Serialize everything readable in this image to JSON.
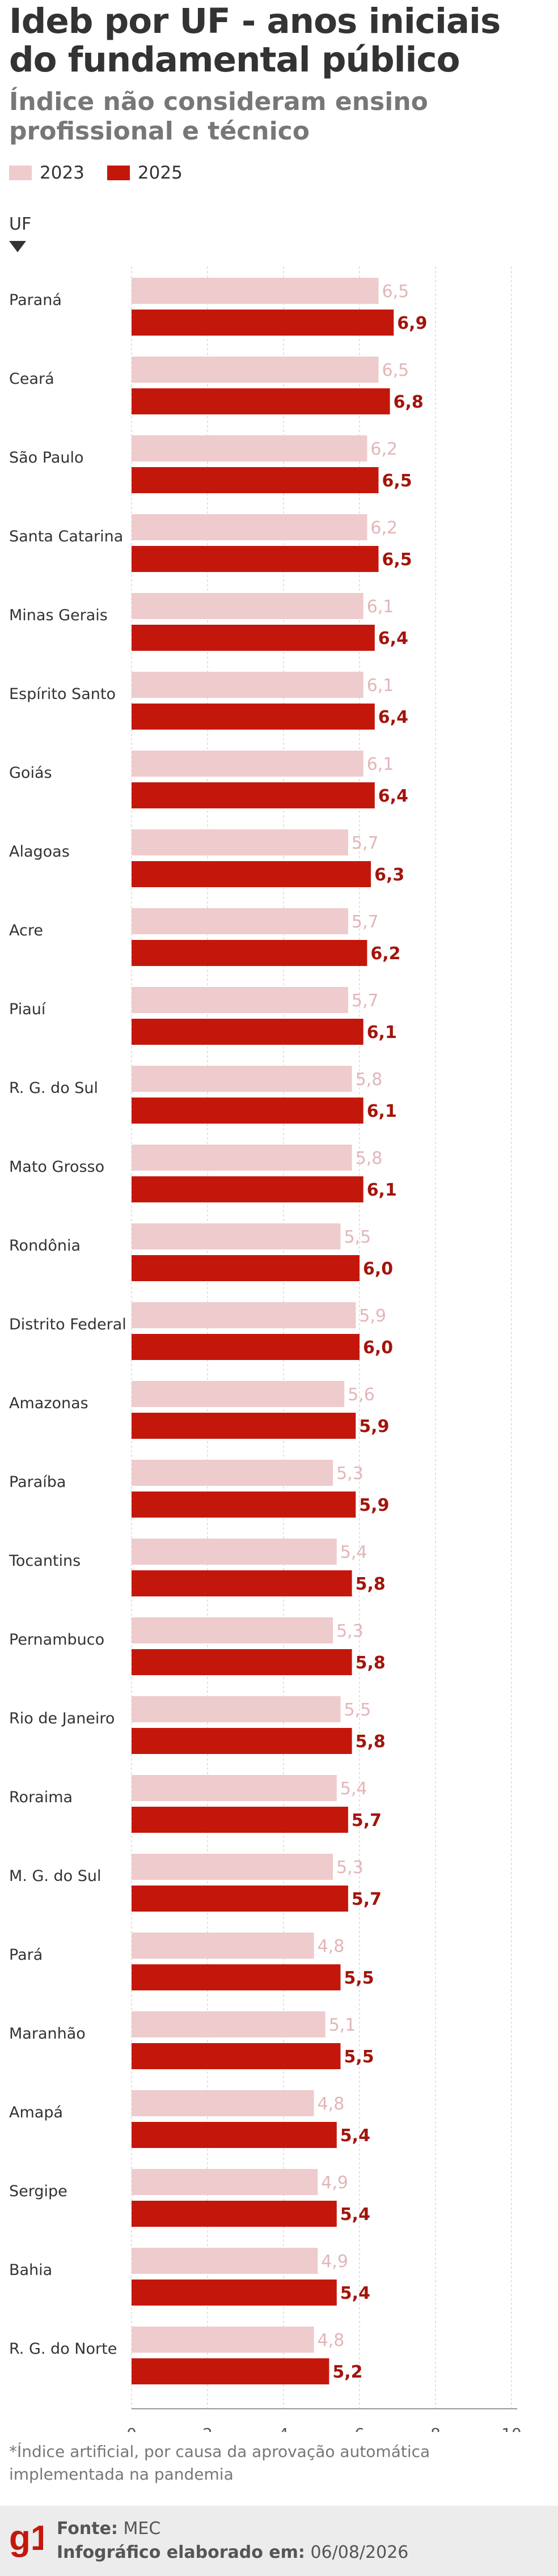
{
  "header": {
    "title": "Ideb por UF - anos iniciais do fundamental público",
    "subtitle": "Índice não consideram ensino profissional e técnico"
  },
  "legend": {
    "items": [
      {
        "label": "2023",
        "color": "#eecbcd"
      },
      {
        "label": "2025",
        "color": "#c4170c"
      }
    ]
  },
  "axis_head": "UF",
  "footnote": "*Índice artificial, por causa da aprovação automática implementada na pandemia",
  "footer": {
    "source_label": "Fonte:",
    "source_value": "MEC",
    "made_label": "Infográfico elaborado em:",
    "made_value": "06/08/2026",
    "logo_text": "g1"
  },
  "chart_data": {
    "type": "bar",
    "orientation": "horizontal",
    "title": "Ideb por UF - anos iniciais do fundamental público",
    "subtitle": "Índice não consideram ensino profissional e técnico",
    "xlim": [
      0,
      10
    ],
    "x_ticks": [
      "0",
      "2",
      "4",
      "6",
      "8",
      "10"
    ],
    "grid": true,
    "categories": [
      "Paraná",
      "Ceará",
      "São Paulo",
      "Santa Catarina",
      "Minas Gerais",
      "Espírito Santo",
      "Goiás",
      "Alagoas",
      "Acre",
      "Piauí",
      "R. G. do Sul",
      "Mato Grosso",
      "Rondônia",
      "Distrito Federal",
      "Amazonas",
      "Paraíba",
      "Tocantins",
      "Pernambuco",
      "Rio de Janeiro",
      "Roraima",
      "M. G. do Sul",
      "Pará",
      "Maranhão",
      "Amapá",
      "Sergipe",
      "Bahia",
      "R. G. do Norte"
    ],
    "series": [
      {
        "name": "2023",
        "color": "#eecbcd",
        "label_color": "#e3b5b8",
        "values": [
          6.5,
          6.5,
          6.2,
          6.2,
          6.1,
          6.1,
          6.1,
          5.7,
          5.7,
          5.7,
          5.8,
          5.8,
          5.5,
          5.9,
          5.6,
          5.3,
          5.4,
          5.3,
          5.5,
          5.4,
          5.3,
          4.8,
          5.1,
          4.8,
          4.9,
          4.9,
          4.8
        ],
        "labels": [
          "6,5",
          "6,5",
          "6,2",
          "6,2",
          "6,1",
          "6,1",
          "6,1",
          "5,7",
          "5,7",
          "5,7",
          "5,8",
          "5,8",
          "5,5",
          "5,9",
          "5,6",
          "5,3",
          "5,4",
          "5,3",
          "5,5",
          "5,4",
          "5,3",
          "4,8",
          "5,1",
          "4,8",
          "4,9",
          "4,9",
          "4,8"
        ]
      },
      {
        "name": "2025",
        "color": "#c4170c",
        "label_color": "#a3140b",
        "values": [
          6.9,
          6.8,
          6.5,
          6.5,
          6.4,
          6.4,
          6.4,
          6.3,
          6.2,
          6.1,
          6.1,
          6.1,
          6.0,
          6.0,
          5.9,
          5.9,
          5.8,
          5.8,
          5.8,
          5.7,
          5.7,
          5.5,
          5.5,
          5.4,
          5.4,
          5.4,
          5.2
        ],
        "labels": [
          "6,9",
          "6,8",
          "6,5",
          "6,5",
          "6,4",
          "6,4",
          "6,4",
          "6,3",
          "6,2",
          "6,1",
          "6,1",
          "6,1",
          "6,0",
          "6,0",
          "5,9",
          "5,9",
          "5,8",
          "5,8",
          "5,8",
          "5,7",
          "5,7",
          "5,5",
          "5,5",
          "5,4",
          "5,4",
          "5,4",
          "5,2"
        ]
      }
    ]
  }
}
